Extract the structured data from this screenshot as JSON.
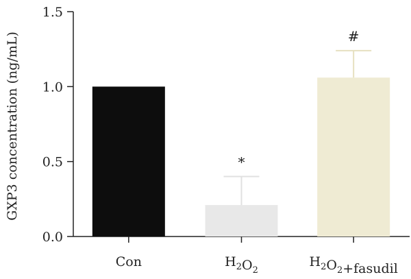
{
  "chart_data": {
    "type": "bar",
    "title": "",
    "xlabel": "",
    "ylabel": "GXP3 concentration (ng/mL)",
    "ylim": [
      0,
      1.5
    ],
    "yticks": [
      "0.0",
      "0.5",
      "1.0",
      "1.5"
    ],
    "categories": [
      {
        "base": "Con",
        "sub": "",
        "mid": "",
        "sub2": "",
        "tail": ""
      },
      {
        "base": "H",
        "sub": "2",
        "mid": "O",
        "sub2": "2",
        "tail": ""
      },
      {
        "base": "H",
        "sub": "2",
        "mid": "O",
        "sub2": "2",
        "tail": "+fasudil"
      }
    ],
    "values": [
      1.0,
      0.21,
      1.06
    ],
    "errors": [
      0,
      0.19,
      0.18
    ],
    "annotations": [
      "",
      "*",
      "#"
    ],
    "colors": [
      "#0d0d0d",
      "#e8e8e8",
      "#efebd3"
    ],
    "grid": false
  }
}
